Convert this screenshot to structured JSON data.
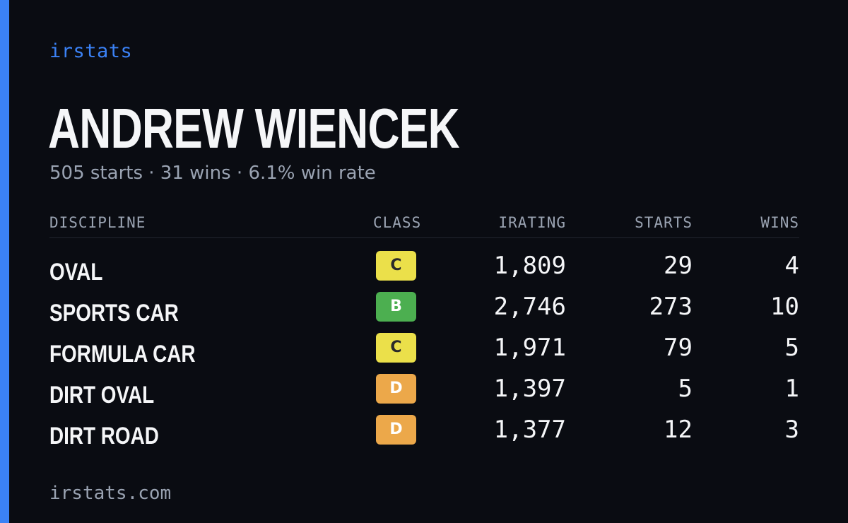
{
  "brand": "irstats",
  "driver": {
    "name": "ANDREW WIENCEK",
    "summary": "505 starts · 31 wins · 6.1% win rate"
  },
  "table": {
    "headers": {
      "discipline": "DISCIPLINE",
      "class": "CLASS",
      "irating": "IRATING",
      "starts": "STARTS",
      "wins": "WINS"
    },
    "rows": [
      {
        "discipline": "OVAL",
        "class": "C",
        "class_color": "#ebe04a",
        "irating": "1,809",
        "starts": "29",
        "wins": "4"
      },
      {
        "discipline": "SPORTS CAR",
        "class": "B",
        "class_color": "#4caf50",
        "irating": "2,746",
        "starts": "273",
        "wins": "10"
      },
      {
        "discipline": "FORMULA CAR",
        "class": "C",
        "class_color": "#ebe04a",
        "irating": "1,971",
        "starts": "79",
        "wins": "5"
      },
      {
        "discipline": "DIRT OVAL",
        "class": "D",
        "class_color": "#eca84a",
        "irating": "1,397",
        "starts": "5",
        "wins": "1"
      },
      {
        "discipline": "DIRT ROAD",
        "class": "D",
        "class_color": "#eca84a",
        "irating": "1,377",
        "starts": "12",
        "wins": "3"
      }
    ]
  },
  "footer": "irstats.com",
  "colors": {
    "accent": "#3b82f6",
    "background": "#0a0c12",
    "muted_text": "#9aa3b2",
    "primary_text": "#f5f6f8"
  }
}
